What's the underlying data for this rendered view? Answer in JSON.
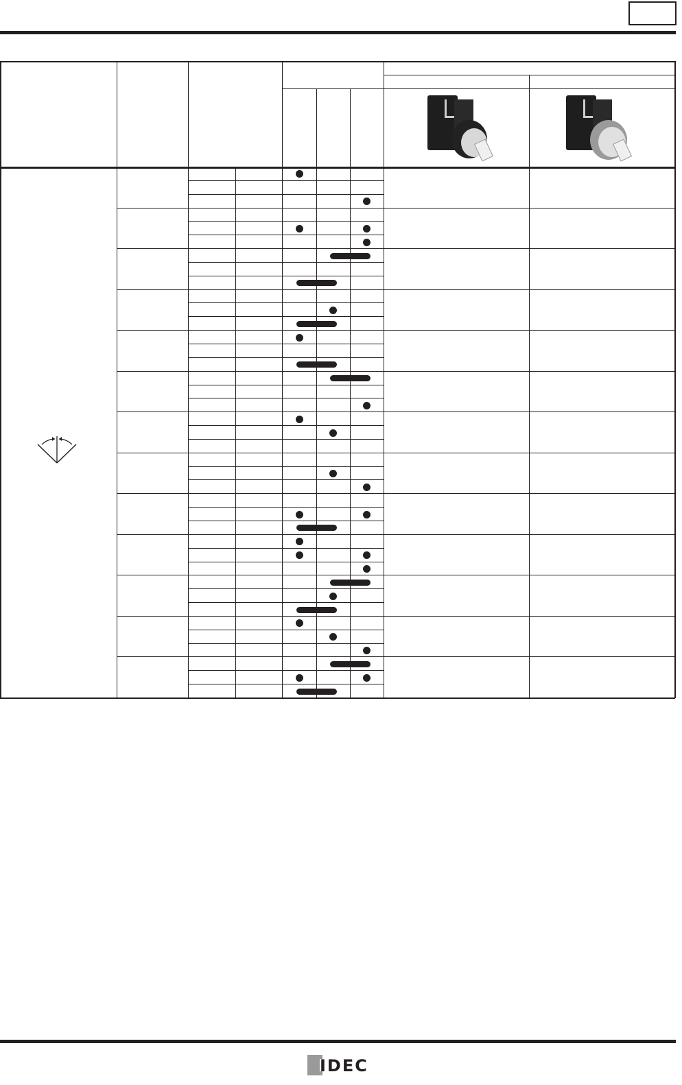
{
  "brand": {
    "logo_text": "IDEC"
  },
  "table": {
    "mark_columns": 3,
    "groups": [
      [
        [
          "A"
        ],
        [],
        [
          "C"
        ]
      ],
      [
        [],
        [
          "A",
          "C"
        ],
        [
          "C"
        ]
      ],
      [
        [
          "BC"
        ],
        [],
        [
          "AB"
        ]
      ],
      [
        [],
        [
          "B"
        ],
        [
          "AB"
        ]
      ],
      [
        [
          "A"
        ],
        [],
        [
          "AB"
        ]
      ],
      [
        [
          "BC"
        ],
        [],
        [
          "C"
        ]
      ],
      [
        [
          "A"
        ],
        [
          "B"
        ],
        []
      ],
      [
        [],
        [
          "B"
        ],
        [
          "C"
        ]
      ],
      [
        [],
        [
          "A",
          "C"
        ],
        [
          "AB"
        ]
      ],
      [
        [
          "A"
        ],
        [
          "A",
          "C"
        ],
        [
          "C"
        ]
      ],
      [
        [
          "BC"
        ],
        [
          "B"
        ],
        [
          "AB"
        ]
      ],
      [
        [
          "A"
        ],
        [
          "B"
        ],
        [
          "C"
        ]
      ],
      [
        [
          "BC"
        ],
        [
          "A",
          "C"
        ],
        [
          "AB"
        ]
      ]
    ],
    "product_images": [
      "key-selector-switch-black-bezel",
      "key-selector-switch-metallic-bezel"
    ],
    "operator_symbol": "diamond-two-position-arrows"
  }
}
